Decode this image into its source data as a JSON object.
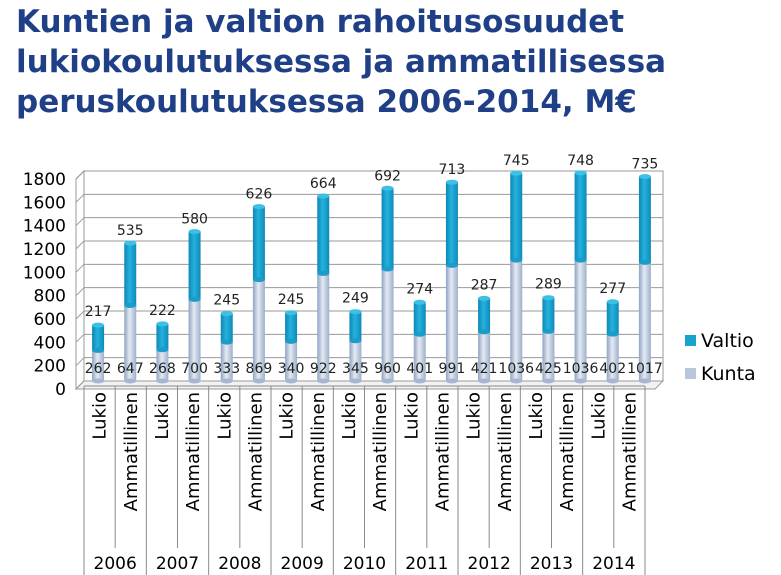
{
  "header": {
    "title_lines": [
      "Kuntien ja valtion rahoitusosuudet",
      "lukiokoulutuksessa ja ammatillisessa",
      "peruskoulutuksessa 2006-2014, M€"
    ]
  },
  "chart_data": {
    "type": "bar",
    "stacked": true,
    "title": "Kuntien ja valtion rahoitusosuudet lukiokoulutuksessa ja ammatillisessa peruskoulutuksessa 2006-2014, M€",
    "categories": [
      "Lukio",
      "Ammatillinen",
      "Lukio",
      "Ammatillinen",
      "Lukio",
      "Ammatillinen",
      "Lukio",
      "Ammatillinen",
      "Lukio",
      "Ammatillinen",
      "Lukio",
      "Ammatillinen",
      "Lukio",
      "Ammatillinen",
      "Lukio",
      "Ammatillinen",
      "Lukio",
      "Ammatillinen"
    ],
    "years": [
      "2006",
      "2007",
      "2008",
      "2009",
      "2010",
      "2011",
      "2012",
      "2013",
      "2014"
    ],
    "series": [
      {
        "name": "Kunta",
        "color": "#b9c7dd",
        "values": [
          262,
          647,
          268,
          700,
          333,
          869,
          340,
          922,
          345,
          960,
          401,
          991,
          421,
          1036,
          425,
          1036,
          402,
          1017
        ]
      },
      {
        "name": "Valtio",
        "color": "#17a2cf",
        "values": [
          217,
          535,
          222,
          580,
          245,
          626,
          245,
          664,
          249,
          692,
          274,
          713,
          287,
          745,
          289,
          748,
          277,
          735
        ]
      }
    ],
    "ylim": [
      0,
      1800
    ],
    "yticks": [
      "0",
      "200",
      "400",
      "600",
      "800",
      "1000",
      "1200",
      "1400",
      "1600",
      "1800"
    ],
    "legend": "right",
    "legend_entries": [
      "Valtio",
      "Kunta"
    ],
    "grid": true
  }
}
